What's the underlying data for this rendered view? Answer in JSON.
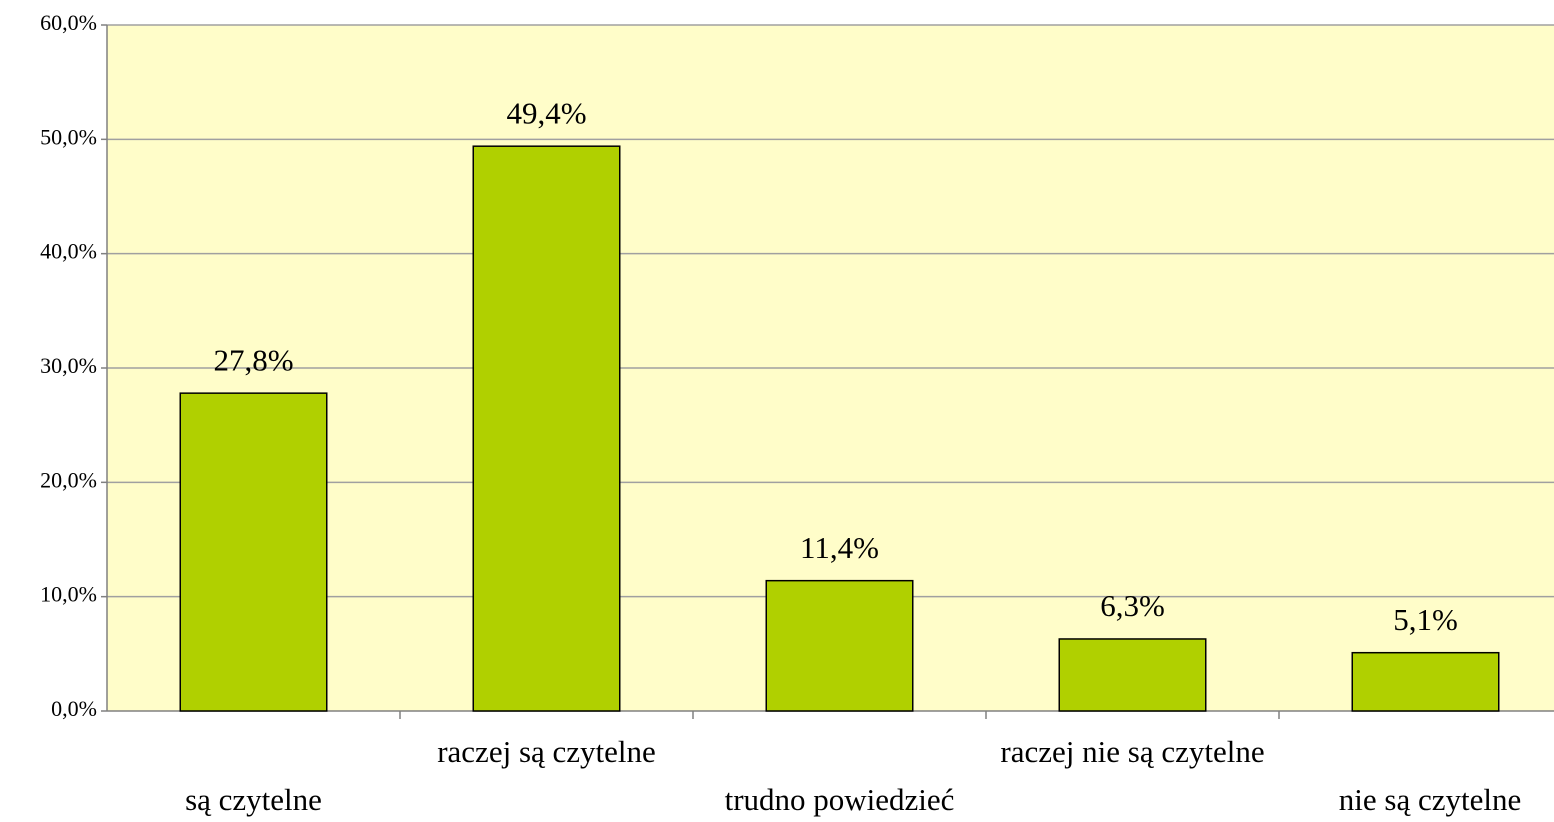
{
  "chart_data": {
    "type": "bar",
    "categories": [
      "są czytelne",
      "raczej są czytelne",
      "trudno powiedzieć",
      "raczej nie są czytelne",
      "nie są czytelne"
    ],
    "values": [
      27.8,
      49.4,
      11.4,
      6.3,
      5.1
    ],
    "value_labels": [
      "27,8%",
      "49,4%",
      "11,4%",
      "6,3%",
      "5,1%"
    ],
    "color": "#b0d000",
    "ylim": [
      0,
      60
    ],
    "yticks": [
      {
        "value": 0,
        "label": "0,0%"
      },
      {
        "value": 10,
        "label": "10,0%"
      },
      {
        "value": 20,
        "label": "20,0%"
      },
      {
        "value": 30,
        "label": "30,0%"
      },
      {
        "value": 40,
        "label": "40,0%"
      },
      {
        "value": 50,
        "label": "50,0%"
      },
      {
        "value": 60,
        "label": "60,0%"
      }
    ],
    "grid": true
  }
}
